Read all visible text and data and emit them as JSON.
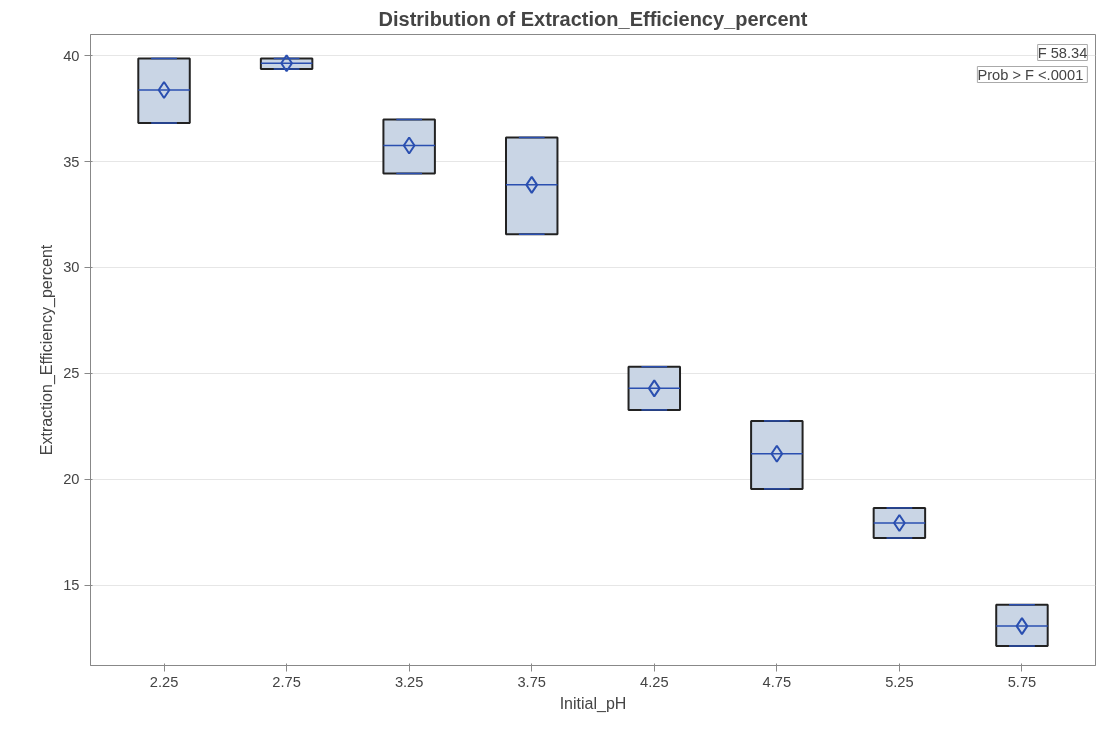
{
  "chart_data": {
    "type": "box",
    "title": "Distribution of Extraction_Efficiency_percent",
    "xlabel": "Initial_pH",
    "ylabel": "Extraction_Efficiency_percent",
    "categories": [
      "2.25",
      "2.75",
      "3.25",
      "3.75",
      "4.25",
      "4.75",
      "5.25",
      "5.75"
    ],
    "series": [
      {
        "color": "#c9d5e5",
        "boxes": [
          {
            "low": 36.82,
            "q1": 36.82,
            "median": 38.38,
            "q3": 39.87,
            "high": 39.87,
            "mean": 38.38
          },
          {
            "low": 39.37,
            "q1": 39.37,
            "median": 39.64,
            "q3": 39.87,
            "high": 39.87,
            "mean": 39.64
          },
          {
            "low": 34.43,
            "q1": 34.43,
            "median": 35.76,
            "q3": 36.98,
            "high": 36.98,
            "mean": 35.76
          },
          {
            "low": 31.57,
            "q1": 31.57,
            "median": 33.9,
            "q3": 36.14,
            "high": 36.14,
            "mean": 33.9
          },
          {
            "low": 23.27,
            "q1": 23.27,
            "median": 24.29,
            "q3": 25.31,
            "high": 25.31,
            "mean": 24.29
          },
          {
            "low": 19.54,
            "q1": 19.54,
            "median": 21.2,
            "q3": 22.75,
            "high": 22.75,
            "mean": 21.2
          },
          {
            "low": 17.22,
            "q1": 17.22,
            "median": 17.93,
            "q3": 18.64,
            "high": 18.64,
            "mean": 17.93
          },
          {
            "low": 12.12,
            "q1": 12.12,
            "median": 13.06,
            "q3": 14.07,
            "high": 14.07,
            "mean": 13.06
          }
        ]
      }
    ],
    "ylim": [
      11.2,
      41.0
    ],
    "yticks": [
      15,
      20,
      25,
      30,
      35,
      40
    ],
    "grid": "y",
    "marker": "diamond",
    "annotations": [
      "F 58.34",
      "Prob > F  <.0001"
    ]
  }
}
